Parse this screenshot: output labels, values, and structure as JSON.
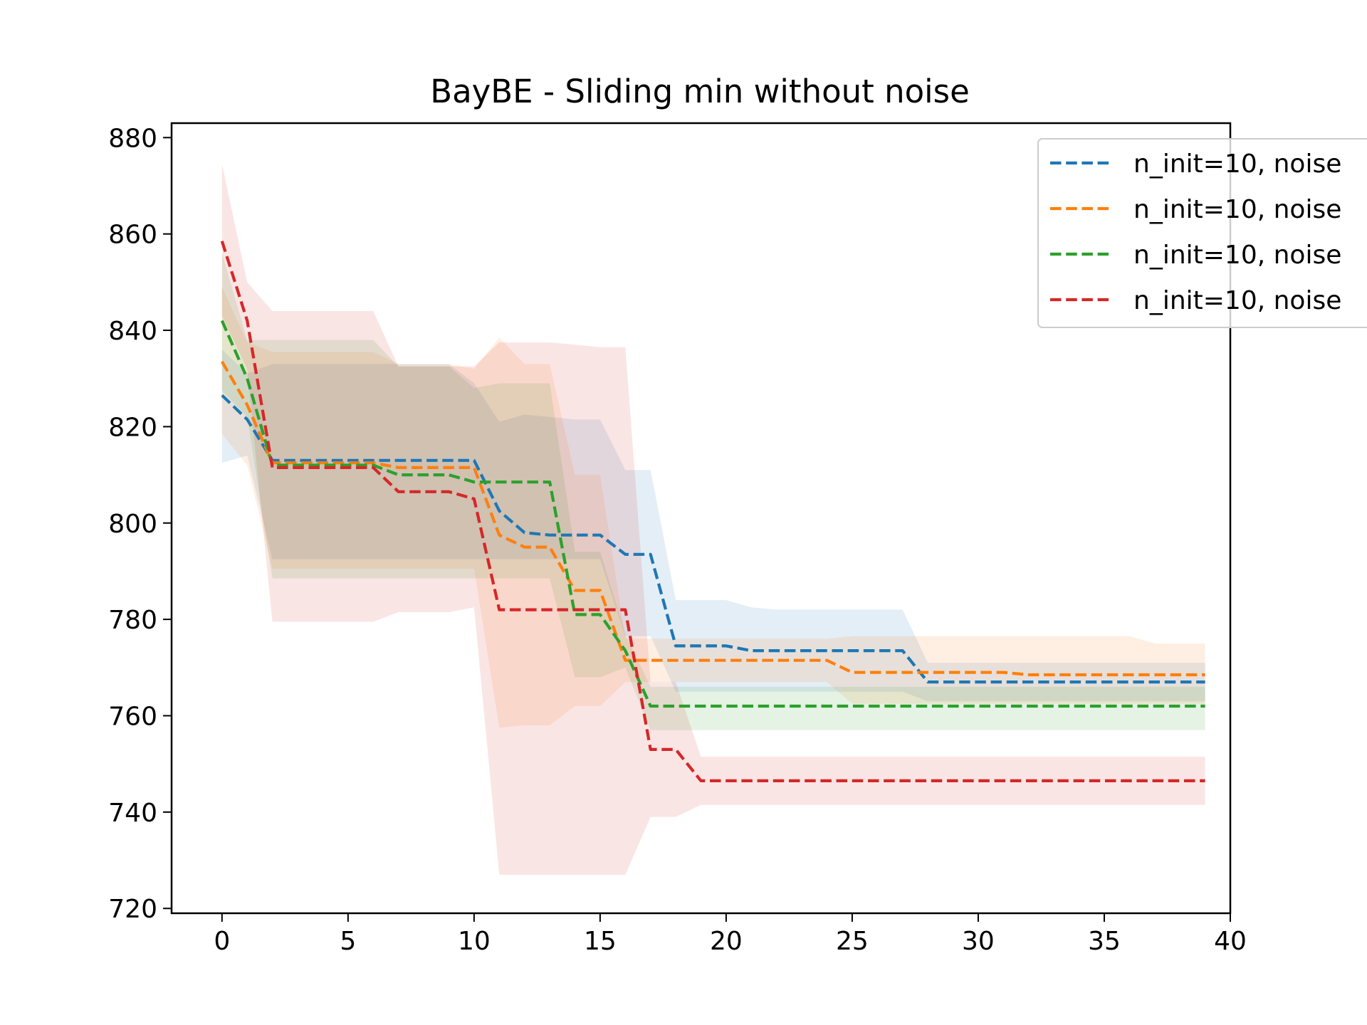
{
  "chart_data": {
    "type": "line",
    "title": "BayBE - Sliding min  without noise",
    "xlabel": "",
    "ylabel": "",
    "xlim": [
      -2,
      40
    ],
    "ylim": [
      719,
      883
    ],
    "xticks": [
      0,
      5,
      10,
      15,
      20,
      25,
      30,
      35,
      40
    ],
    "yticks": [
      720,
      740,
      760,
      780,
      800,
      820,
      840,
      860,
      880
    ],
    "grid": false,
    "legend_position": "top-right",
    "x": [
      0,
      1,
      2,
      3,
      4,
      5,
      6,
      7,
      8,
      9,
      10,
      11,
      12,
      13,
      14,
      15,
      16,
      17,
      18,
      19,
      20,
      21,
      22,
      23,
      24,
      25,
      26,
      27,
      28,
      29,
      30,
      31,
      32,
      33,
      34,
      35,
      36,
      37,
      38,
      39
    ],
    "series": [
      {
        "name": "n_init=10, noise",
        "color": "#1f77b4",
        "values": [
          826.5,
          821.5,
          813,
          813,
          813,
          813,
          813,
          813,
          813,
          813,
          813,
          802.5,
          798,
          797.5,
          797.5,
          797.5,
          793.5,
          793.5,
          774.5,
          774.5,
          774.5,
          773.5,
          773.5,
          773.5,
          773.5,
          773.5,
          773.5,
          773.5,
          767,
          767,
          767,
          767,
          767,
          767,
          767,
          767,
          767,
          767,
          767,
          767
        ],
        "lower": [
          812.5,
          814,
          792.5,
          792.5,
          792.5,
          792.5,
          792.5,
          792.5,
          792.5,
          792.5,
          792.5,
          792.5,
          792.5,
          792.5,
          792.5,
          792.5,
          776.5,
          776.5,
          765,
          765,
          765,
          765,
          765,
          765,
          765,
          765,
          765,
          765,
          763,
          763,
          763,
          763,
          763,
          763,
          763,
          763,
          763,
          763,
          763,
          763
        ],
        "upper": [
          836,
          831,
          833,
          833,
          833,
          833,
          833,
          833,
          833,
          833,
          829,
          821,
          822.5,
          822,
          821.5,
          821.5,
          811,
          811,
          784,
          784,
          784,
          782.5,
          782,
          782,
          782,
          782,
          782,
          782,
          771,
          771,
          771,
          771,
          771,
          771,
          771,
          771,
          771,
          771,
          771,
          771
        ]
      },
      {
        "name": "n_init=10, noise",
        "color": "#ff7f0e",
        "values": [
          833.5,
          824.5,
          812.5,
          812.5,
          812.5,
          812.5,
          812.5,
          811.5,
          811.5,
          811.5,
          811.5,
          797.5,
          795,
          795,
          786,
          786,
          771.5,
          771.5,
          771.5,
          771.5,
          771.5,
          771.5,
          771.5,
          771.5,
          771.5,
          769,
          769,
          769,
          769,
          769,
          769,
          769,
          768.5,
          768.5,
          768.5,
          768.5,
          768.5,
          768.5,
          768.5,
          768.5
        ],
        "lower": [
          818.5,
          812,
          790.5,
          790.5,
          790.5,
          790.5,
          790.5,
          790.5,
          790.5,
          790.5,
          790.5,
          757.5,
          758,
          758,
          762,
          762,
          767,
          767,
          767,
          767,
          767,
          767,
          767,
          767,
          767,
          762.5,
          762.5,
          762.5,
          762.5,
          762.5,
          762.5,
          762.5,
          762.5,
          762.5,
          762.5,
          762.5,
          762.5,
          762.5,
          762.5,
          762.5
        ],
        "upper": [
          849,
          837.5,
          835.5,
          835.5,
          835.5,
          835.5,
          835.5,
          833,
          833,
          833,
          832,
          838.5,
          833,
          833,
          810,
          810,
          776,
          776,
          776,
          776,
          776,
          776,
          776,
          776,
          776,
          776.5,
          776.5,
          776.5,
          776.5,
          776.5,
          776.5,
          776.5,
          776.5,
          776.5,
          776.5,
          776.5,
          776.5,
          775,
          775,
          775
        ]
      },
      {
        "name": "n_init=10, noise",
        "color": "#2ca02c",
        "values": [
          842,
          830,
          812,
          812,
          812,
          812,
          812,
          810,
          810,
          810,
          808.5,
          808.5,
          808.5,
          808.5,
          781,
          781,
          773.5,
          762,
          762,
          762,
          762,
          762,
          762,
          762,
          762,
          762,
          762,
          762,
          762,
          762,
          762,
          762,
          762,
          762,
          762,
          762,
          762,
          762,
          762,
          762
        ],
        "lower": [
          827.5,
          822,
          788.5,
          788.5,
          788.5,
          788.5,
          788.5,
          788.5,
          788.5,
          788.5,
          788.5,
          788.5,
          788.5,
          788.5,
          768,
          768,
          770,
          757,
          757,
          757,
          757,
          757,
          757,
          757,
          757,
          757,
          757,
          757,
          757,
          757,
          757,
          757,
          757,
          757,
          757,
          757,
          757,
          757,
          757,
          757
        ],
        "upper": [
          856,
          838,
          838,
          838,
          838,
          838,
          838,
          832.5,
          832.5,
          832.5,
          828,
          829,
          829,
          829,
          794,
          794,
          777,
          766,
          766,
          766,
          766,
          766,
          766,
          766,
          766,
          766,
          766,
          766,
          766,
          766,
          766,
          766,
          766,
          766,
          766,
          766,
          766,
          766,
          766,
          766
        ]
      },
      {
        "name": "n_init=10, noise",
        "color": "#d62728",
        "values": [
          858.5,
          842,
          811.5,
          811.5,
          811.5,
          811.5,
          811.5,
          806.5,
          806.5,
          806.5,
          805,
          782,
          782,
          782,
          782,
          782,
          782,
          753,
          753,
          746.5,
          746.5,
          746.5,
          746.5,
          746.5,
          746.5,
          746.5,
          746.5,
          746.5,
          746.5,
          746.5,
          746.5,
          746.5,
          746.5,
          746.5,
          746.5,
          746.5,
          746.5,
          746.5,
          746.5,
          746.5
        ],
        "lower": [
          843,
          832,
          779.5,
          779.5,
          779.5,
          779.5,
          779.5,
          781.5,
          781.5,
          781.5,
          782.5,
          727,
          727,
          727,
          727,
          727,
          727,
          739,
          739,
          741.5,
          741.5,
          741.5,
          741.5,
          741.5,
          741.5,
          741.5,
          741.5,
          741.5,
          741.5,
          741.5,
          741.5,
          741.5,
          741.5,
          741.5,
          741.5,
          741.5,
          741.5,
          741.5,
          741.5,
          741.5
        ],
        "upper": [
          874.5,
          850,
          844,
          844,
          844,
          844,
          844,
          832.5,
          832.5,
          832.5,
          832.5,
          837.5,
          837.5,
          837.5,
          837,
          836.5,
          836.5,
          767,
          767,
          751.5,
          751.5,
          751.5,
          751.5,
          751.5,
          751.5,
          751.5,
          751.5,
          751.5,
          751.5,
          751.5,
          751.5,
          751.5,
          751.5,
          751.5,
          751.5,
          751.5,
          751.5,
          751.5,
          751.5,
          751.5
        ]
      }
    ]
  }
}
